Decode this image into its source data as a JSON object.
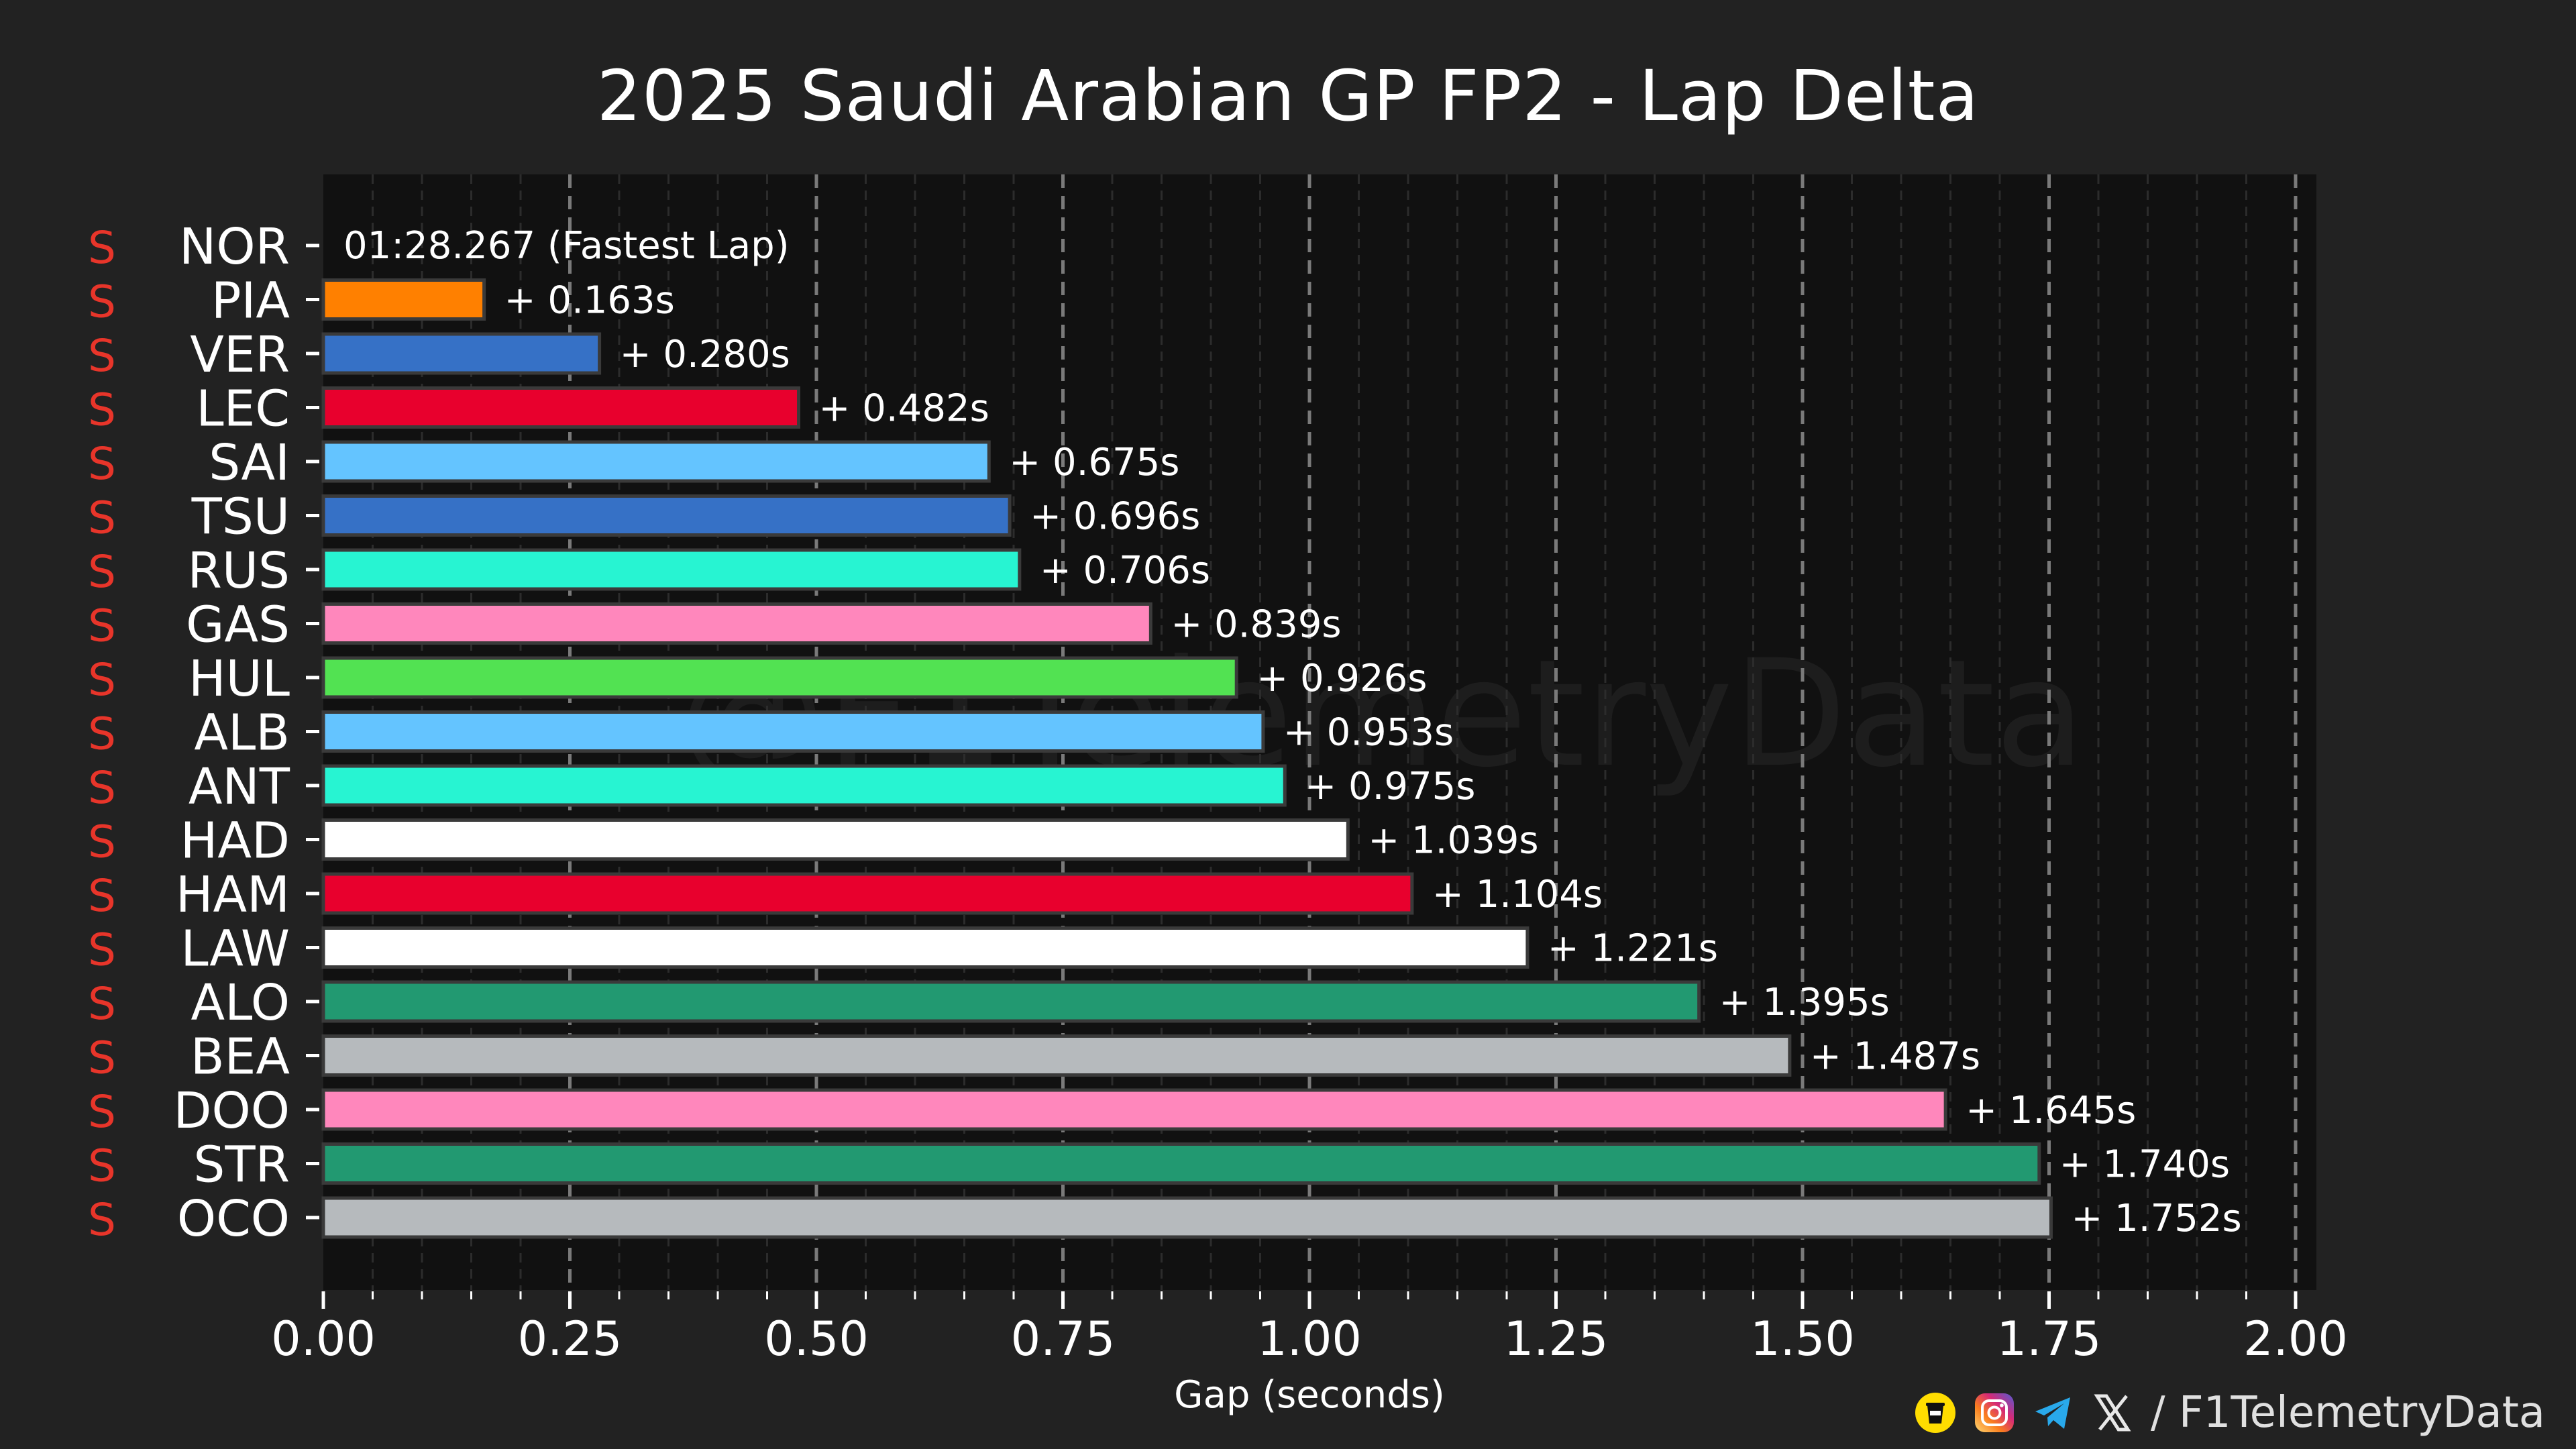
{
  "title": "2025 Saudi Arabian GP FP2 - Lap Delta",
  "footer": {
    "icons": [
      "buymeacoffee-icon",
      "instagram-icon",
      "telegram-icon",
      "x-icon"
    ],
    "text": "/ F1TelemetryData"
  },
  "watermark": "@F1TelemetryData",
  "colors": {
    "background": "#222222",
    "plot_background": "#111111",
    "compound_soft": "#e8352a"
  },
  "chart_data": {
    "type": "bar",
    "orientation": "horizontal",
    "title": "2025 Saudi Arabian GP FP2 - Lap Delta",
    "xlabel": "Gap (seconds)",
    "ylabel": "",
    "xlim": [
      0,
      2.0
    ],
    "xticks": [
      "0.00",
      "0.25",
      "0.50",
      "0.75",
      "1.00",
      "1.25",
      "1.50",
      "1.75",
      "2.00"
    ],
    "grid": "vertical dashed",
    "fastest_lap_label": "01:28.267 (Fastest Lap)",
    "categories": [
      "NOR",
      "PIA",
      "VER",
      "LEC",
      "SAI",
      "TSU",
      "RUS",
      "GAS",
      "HUL",
      "ALB",
      "ANT",
      "HAD",
      "HAM",
      "LAW",
      "ALO",
      "BEA",
      "DOO",
      "STR",
      "OCO"
    ],
    "compounds": [
      "S",
      "S",
      "S",
      "S",
      "S",
      "S",
      "S",
      "S",
      "S",
      "S",
      "S",
      "S",
      "S",
      "S",
      "S",
      "S",
      "S",
      "S",
      "S"
    ],
    "values": [
      0,
      0.163,
      0.28,
      0.482,
      0.675,
      0.696,
      0.706,
      0.839,
      0.926,
      0.953,
      0.975,
      1.039,
      1.104,
      1.221,
      1.395,
      1.487,
      1.645,
      1.74,
      1.752
    ],
    "labels": [
      "",
      "+ 0.163s",
      "+ 0.280s",
      "+ 0.482s",
      "+ 0.675s",
      "+ 0.696s",
      "+ 0.706s",
      "+ 0.839s",
      "+ 0.926s",
      "+ 0.953s",
      "+ 0.975s",
      "+ 1.039s",
      "+ 1.104s",
      "+ 1.221s",
      "+ 1.395s",
      "+ 1.487s",
      "+ 1.645s",
      "+ 1.740s",
      "+ 1.752s"
    ],
    "bar_colors": [
      "#ff8000",
      "#ff8000",
      "#3671c6",
      "#e8002d",
      "#64c4ff",
      "#3671c6",
      "#27f4d2",
      "#ff87bc",
      "#52e252",
      "#64c4ff",
      "#27f4d2",
      "#ffffff",
      "#e8002d",
      "#ffffff",
      "#229971",
      "#b6babd",
      "#ff87bc",
      "#229971",
      "#b6babd"
    ]
  }
}
